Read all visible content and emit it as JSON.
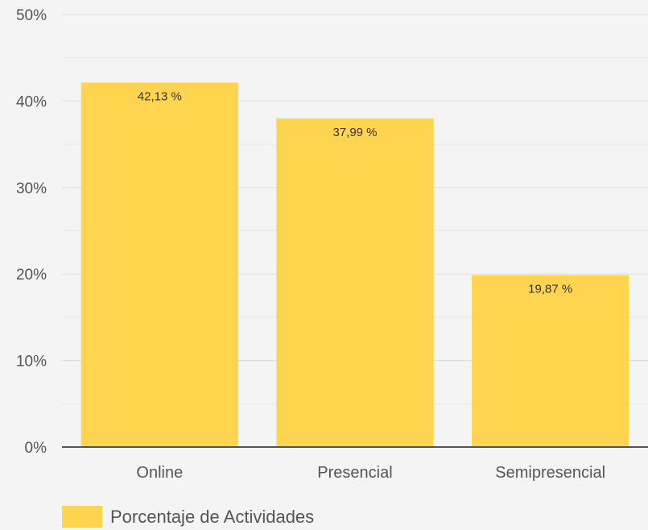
{
  "chart_data": {
    "type": "bar",
    "categories": [
      "Online",
      "Presencial",
      "Semipresencial"
    ],
    "series": [
      {
        "name": "Porcentaje de Actividades",
        "values": [
          42.13,
          37.99,
          19.87
        ],
        "labels": [
          "42,13 %",
          "37,99 %",
          "19,87 %"
        ],
        "color": "#ffd54f"
      }
    ],
    "ylim": [
      0,
      50
    ],
    "yticks": [
      0,
      10,
      20,
      30,
      40,
      50
    ],
    "ytick_labels": [
      "0%",
      "10%",
      "20%",
      "30%",
      "40%",
      "50%"
    ],
    "grid": true,
    "legend": "bottom-left"
  }
}
